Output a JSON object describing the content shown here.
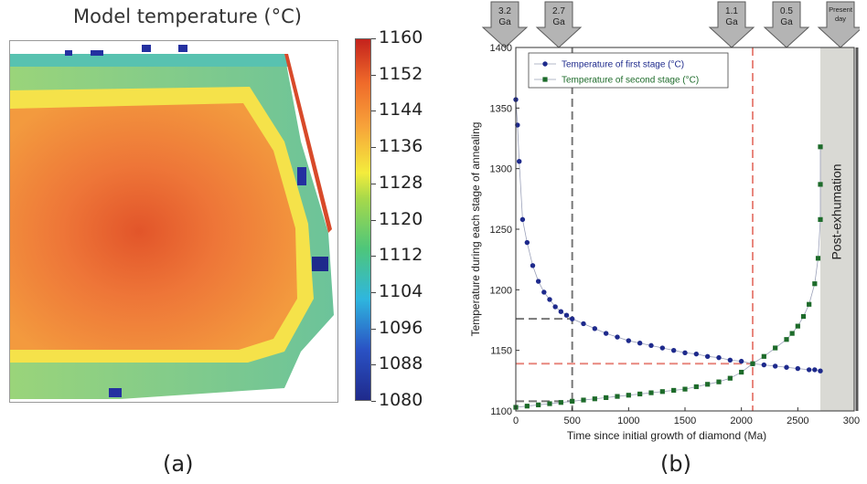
{
  "panel_a": {
    "title": "Model temperature (°C)",
    "letter": "(a)",
    "colorbar_ticks": [
      "1160",
      "1152",
      "1144",
      "1136",
      "1128",
      "1120",
      "1112",
      "1104",
      "1096",
      "1088",
      "1080"
    ],
    "colors": {
      "core": "#ef7a3c",
      "hot_spot": "#e2552a",
      "rim_yellow": "#f6e23e",
      "rim_green": "#7ecb8a",
      "edge_blue": "#2430a0"
    }
  },
  "panel_b": {
    "letter": "(b)",
    "arrows": [
      {
        "lines": [
          "3.2",
          "Ga"
        ]
      },
      {
        "lines": [
          "2.7",
          "Ga"
        ]
      },
      {
        "lines": [
          "1.1",
          "Ga"
        ]
      },
      {
        "lines": [
          "0.5",
          "Ga"
        ]
      },
      {
        "lines": [
          "Present",
          "day"
        ]
      }
    ],
    "shaded_label": "Post-exhumation"
  },
  "chart_data": {
    "type": "scatter",
    "xlabel": "Time since initial growth of diamond (Ma)",
    "ylabel": "Temperature during each stage of annealing",
    "xlim": [
      0,
      3000
    ],
    "ylim": [
      1100,
      1400
    ],
    "x_ticks": [
      "0",
      "500",
      "1000",
      "1500",
      "2000",
      "2500",
      "3000"
    ],
    "y_ticks": [
      "1100",
      "1150",
      "1200",
      "1250",
      "1300",
      "1350",
      "1400"
    ],
    "legend_position": "top-left",
    "shaded_region": [
      2700,
      3000
    ],
    "reference_lines": [
      {
        "axis": "x",
        "value": 500,
        "color": "#777777"
      },
      {
        "axis": "y",
        "value": 1176,
        "color": "#777777",
        "x_end": 500
      },
      {
        "axis": "y",
        "value": 1108,
        "color": "#777777",
        "x_end": 500
      },
      {
        "axis": "x",
        "value": 2100,
        "color": "#e8877e"
      },
      {
        "axis": "y",
        "value": 1139,
        "color": "#e8877e",
        "x_end": 2100
      }
    ],
    "series": [
      {
        "name": "Temperature of first stage (°C)",
        "color": "#1e2a8c",
        "marker": "circle",
        "x": [
          0,
          15,
          30,
          60,
          100,
          150,
          200,
          250,
          300,
          350,
          400,
          450,
          500,
          600,
          700,
          800,
          900,
          1000,
          1100,
          1200,
          1300,
          1400,
          1500,
          1600,
          1700,
          1800,
          1900,
          2000,
          2100,
          2200,
          2300,
          2400,
          2500,
          2600,
          2650,
          2700
        ],
        "y": [
          1357,
          1336,
          1306,
          1258,
          1239,
          1220,
          1207,
          1198,
          1192,
          1186,
          1182,
          1179,
          1176,
          1172,
          1168,
          1164,
          1161,
          1158,
          1156,
          1154,
          1152,
          1150,
          1148,
          1147,
          1145,
          1144,
          1142,
          1141,
          1139,
          1138,
          1137,
          1136,
          1135,
          1134,
          1134,
          1133
        ]
      },
      {
        "name": "Temperature of second stage (°C)",
        "color": "#1d6b2a",
        "marker": "square",
        "x": [
          0,
          100,
          200,
          300,
          400,
          500,
          600,
          700,
          800,
          900,
          1000,
          1100,
          1200,
          1300,
          1400,
          1500,
          1600,
          1700,
          1800,
          1900,
          2000,
          2100,
          2200,
          2300,
          2400,
          2450,
          2500,
          2550,
          2600,
          2650,
          2680,
          2700,
          2700,
          2700
        ],
        "y": [
          1103,
          1104,
          1105,
          1106,
          1107,
          1108,
          1109,
          1110,
          1111,
          1112,
          1113,
          1114,
          1115,
          1116,
          1117,
          1118,
          1120,
          1122,
          1124,
          1127,
          1132,
          1139,
          1145,
          1152,
          1159,
          1164,
          1170,
          1178,
          1188,
          1205,
          1226,
          1258,
          1287,
          1318
        ]
      }
    ]
  }
}
